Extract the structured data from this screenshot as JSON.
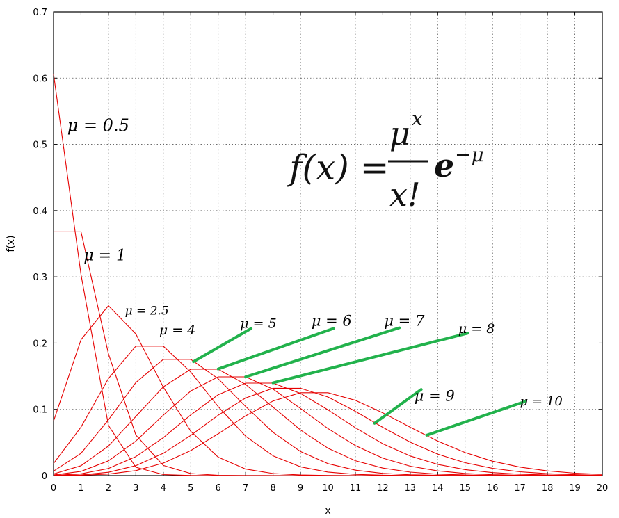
{
  "chart_data": {
    "type": "line",
    "xlabel": "x",
    "ylabel": "f(x)",
    "xlim": [
      0,
      20
    ],
    "ylim": [
      0,
      0.7
    ],
    "x_ticks": [
      "0",
      "1",
      "2",
      "3",
      "4",
      "5",
      "6",
      "7",
      "8",
      "9",
      "10",
      "11",
      "12",
      "13",
      "14",
      "15",
      "16",
      "17",
      "18",
      "19",
      "20"
    ],
    "y_ticks": [
      "0",
      "0.1",
      "0.2",
      "0.3",
      "0.4",
      "0.5",
      "0.6",
      "0.7"
    ],
    "grid": true,
    "line_color": "#e60000",
    "leader_color": "#22b24c",
    "formula": {
      "lhs": "f(x) =",
      "numerator": "μ",
      "numerator_sup": "x",
      "denominator": "x!",
      "factor": "e",
      "factor_sup": "−μ"
    },
    "x": [
      0,
      1,
      2,
      3,
      4,
      5,
      6,
      7,
      8,
      9,
      10,
      11,
      12,
      13,
      14,
      15,
      16,
      17,
      18,
      19,
      20
    ],
    "series": [
      {
        "label": "μ = 0.5",
        "mu": 0.5,
        "values": [
          0.6065,
          0.3033,
          0.0758,
          0.0126,
          0.0016,
          0.0002,
          0,
          0,
          0,
          0,
          0,
          0,
          0,
          0,
          0,
          0,
          0,
          0,
          0,
          0,
          0
        ]
      },
      {
        "label": "μ = 1",
        "mu": 1,
        "values": [
          0.3679,
          0.3679,
          0.1839,
          0.0613,
          0.0153,
          0.0031,
          0.0005,
          0.0001,
          0,
          0,
          0,
          0,
          0,
          0,
          0,
          0,
          0,
          0,
          0,
          0,
          0
        ]
      },
      {
        "label": "μ = 2.5",
        "mu": 2.5,
        "values": [
          0.0821,
          0.2052,
          0.2565,
          0.2138,
          0.1336,
          0.0668,
          0.0278,
          0.0099,
          0.0031,
          0.0009,
          0.0002,
          0,
          0,
          0,
          0,
          0,
          0,
          0,
          0,
          0,
          0
        ]
      },
      {
        "label": "μ = 4",
        "mu": 4,
        "values": [
          0.0183,
          0.0733,
          0.1465,
          0.1954,
          0.1954,
          0.1563,
          0.1042,
          0.0595,
          0.0298,
          0.0132,
          0.0053,
          0.0019,
          0.0006,
          0.0002,
          0,
          0,
          0,
          0,
          0,
          0,
          0
        ]
      },
      {
        "label": "μ = 5",
        "mu": 5,
        "values": [
          0.0067,
          0.0337,
          0.0842,
          0.1404,
          0.1755,
          0.1755,
          0.1462,
          0.1044,
          0.0653,
          0.0363,
          0.0181,
          0.0082,
          0.0034,
          0.0013,
          0.0005,
          0.0002,
          0,
          0,
          0,
          0,
          0
        ]
      },
      {
        "label": "μ = 6",
        "mu": 6,
        "values": [
          0.0025,
          0.0149,
          0.0446,
          0.0892,
          0.1339,
          0.1606,
          0.1606,
          0.1377,
          0.1033,
          0.0688,
          0.0413,
          0.0225,
          0.0113,
          0.0052,
          0.0022,
          0.0009,
          0.0003,
          0.0001,
          0,
          0,
          0
        ]
      },
      {
        "label": "μ = 7",
        "mu": 7,
        "values": [
          0.0009,
          0.0064,
          0.0223,
          0.0521,
          0.0912,
          0.1277,
          0.149,
          0.149,
          0.1304,
          0.1014,
          0.071,
          0.0452,
          0.0263,
          0.0142,
          0.0071,
          0.0033,
          0.0014,
          0.0006,
          0.0002,
          0.0001,
          0
        ]
      },
      {
        "label": "μ = 8",
        "mu": 8,
        "values": [
          0.0003,
          0.0027,
          0.0107,
          0.0286,
          0.0573,
          0.0916,
          0.1221,
          0.1396,
          0.1396,
          0.1241,
          0.0993,
          0.0722,
          0.0481,
          0.0296,
          0.0169,
          0.009,
          0.0045,
          0.0021,
          0.0009,
          0.0004,
          0.0002
        ]
      },
      {
        "label": "μ = 9",
        "mu": 9,
        "values": [
          0.0001,
          0.0011,
          0.005,
          0.015,
          0.0337,
          0.0607,
          0.0911,
          0.1171,
          0.1318,
          0.1318,
          0.1186,
          0.097,
          0.0728,
          0.0504,
          0.0324,
          0.0194,
          0.0109,
          0.0058,
          0.0029,
          0.0014,
          0.0006
        ]
      },
      {
        "label": "μ = 10",
        "mu": 10,
        "values": [
          0,
          0.0005,
          0.0023,
          0.0076,
          0.0189,
          0.0378,
          0.0631,
          0.0901,
          0.1126,
          0.1251,
          0.1251,
          0.1137,
          0.0948,
          0.0729,
          0.0521,
          0.0347,
          0.0217,
          0.0128,
          0.0071,
          0.0037,
          0.0019
        ]
      }
    ],
    "annotations": [
      {
        "series": 0,
        "text": "μ = 0.5",
        "at": [
          0.5,
          0.52
        ],
        "size": 24
      },
      {
        "series": 1,
        "text": "μ = 1",
        "at": [
          1.1,
          0.325
        ],
        "size": 22
      },
      {
        "series": 2,
        "text": "μ = 2.5",
        "at": [
          2.6,
          0.243
        ],
        "size": 17
      },
      {
        "series": 3,
        "text": "μ = 4",
        "at": [
          3.85,
          0.213
        ],
        "size": 19
      },
      {
        "series": 4,
        "text": "μ = 5",
        "at": [
          6.8,
          0.223
        ],
        "size": 19,
        "leader_to": [
          5.1,
          0.172
        ],
        "leader_from": [
          7.2,
          0.222
        ]
      },
      {
        "series": 5,
        "text": "μ = 6",
        "at": [
          9.4,
          0.226
        ],
        "size": 21,
        "leader_to": [
          6.0,
          0.161
        ],
        "leader_from": [
          10.2,
          0.222
        ]
      },
      {
        "series": 6,
        "text": "μ = 7",
        "at": [
          12.05,
          0.226
        ],
        "size": 21,
        "leader_to": [
          7.0,
          0.149
        ],
        "leader_from": [
          12.6,
          0.223
        ]
      },
      {
        "series": 7,
        "text": "μ = 8",
        "at": [
          14.75,
          0.215
        ],
        "size": 19,
        "leader_to": [
          8.0,
          0.14
        ],
        "leader_from": [
          15.1,
          0.215
        ]
      },
      {
        "series": 8,
        "text": "μ = 9",
        "at": [
          13.15,
          0.113
        ],
        "size": 21,
        "leader_to": [
          11.7,
          0.079
        ],
        "leader_from": [
          13.4,
          0.13
        ]
      },
      {
        "series": 9,
        "text": "μ = 10",
        "at": [
          17.0,
          0.106
        ],
        "size": 18,
        "leader_to": [
          13.6,
          0.061
        ],
        "leader_from": [
          17.2,
          0.112
        ]
      }
    ]
  }
}
